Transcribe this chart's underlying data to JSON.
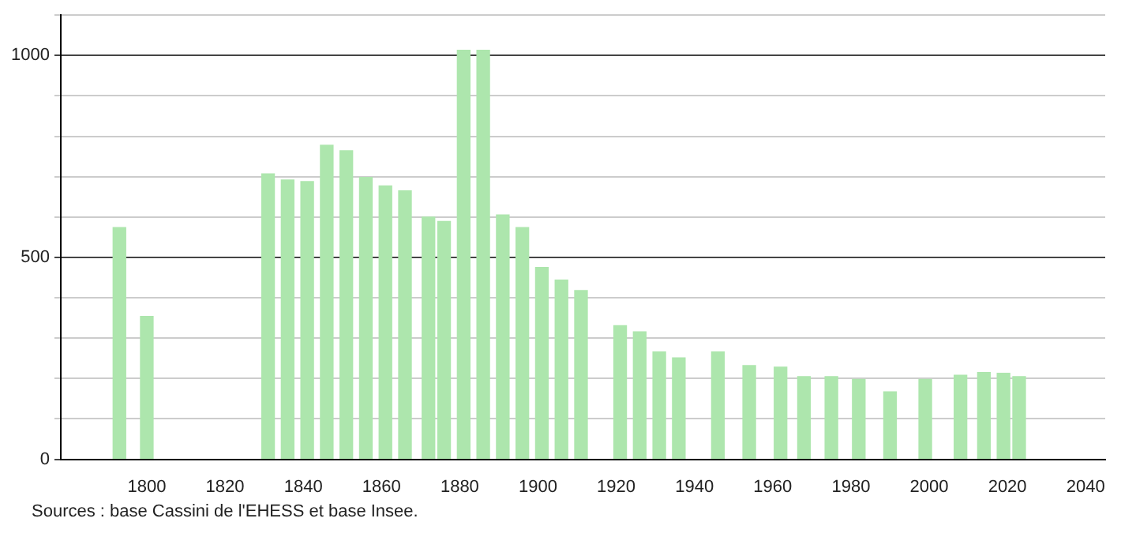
{
  "chart_data": {
    "type": "bar",
    "color": "#ade6ad",
    "x": [
      1793,
      1800,
      1831,
      1836,
      1841,
      1846,
      1851,
      1856,
      1861,
      1866,
      1872,
      1876,
      1881,
      1886,
      1891,
      1896,
      1901,
      1906,
      1911,
      1921,
      1926,
      1931,
      1936,
      1946,
      1954,
      1962,
      1968,
      1975,
      1982,
      1990,
      1999,
      2008,
      2014,
      2019,
      2023
    ],
    "values": [
      574,
      354,
      707,
      692,
      688,
      778,
      764,
      698,
      677,
      665,
      600,
      589,
      1013,
      1013,
      605,
      574,
      475,
      444,
      418,
      331,
      316,
      266,
      251,
      266,
      232,
      228,
      205,
      205,
      198,
      167,
      198,
      208,
      215,
      213,
      205
    ],
    "xlim": [
      1778,
      2045
    ],
    "xticks": [
      1800,
      1820,
      1840,
      1860,
      1880,
      1900,
      1920,
      1940,
      1960,
      1980,
      2000,
      2020,
      2040
    ],
    "ylim": [
      0,
      1100
    ],
    "yticks": [
      0,
      {
        "value": 100,
        "label": null
      },
      {
        "value": 200,
        "label": null
      },
      {
        "value": 300,
        "label": null
      },
      {
        "value": 400,
        "label": null
      },
      500,
      {
        "value": 600,
        "label": null
      },
      {
        "value": 700,
        "label": null
      },
      {
        "value": 800,
        "label": null
      },
      {
        "value": 900,
        "label": null
      },
      1000,
      {
        "value": 1100,
        "label": null
      }
    ],
    "grid": "y",
    "legend": false,
    "annotations": [
      "Sources : base Cassini de l'EHESS et base Insee."
    ]
  }
}
